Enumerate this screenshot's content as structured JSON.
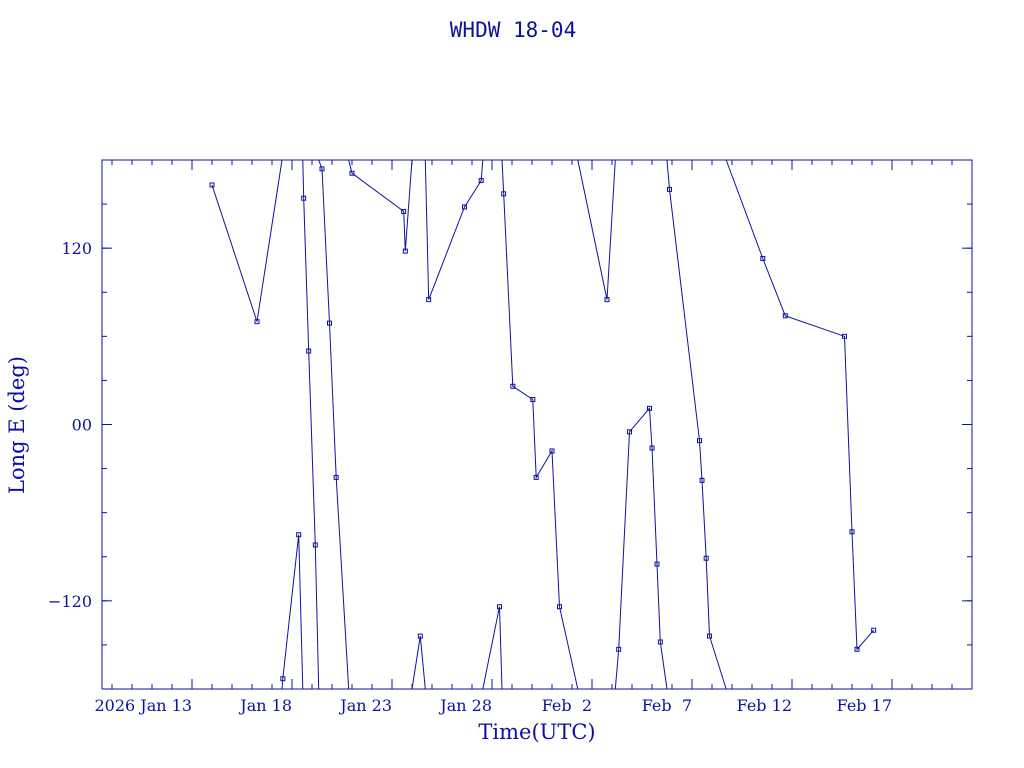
{
  "chart_data": {
    "type": "line",
    "title": "WHDW 18-04",
    "xlabel": "Time(UTC)",
    "ylabel": "Long E (deg)",
    "ylim": [
      -180,
      180
    ],
    "xlim": [
      "2026-01-08T12:00",
      "2026-02-21T00:00"
    ],
    "color": "#1010a0",
    "x_ticks": [
      {
        "date": "2026-01-13",
        "label": "2026 Jan 13"
      },
      {
        "date": "2026-01-18",
        "label": "Jan 18"
      },
      {
        "date": "2026-01-23",
        "label": "Jan 23"
      },
      {
        "date": "2026-01-28",
        "label": "Jan 28"
      },
      {
        "date": "2026-02-02",
        "label": "Feb  2"
      },
      {
        "date": "2026-02-07",
        "label": "Feb  7"
      },
      {
        "date": "2026-02-12",
        "label": "Feb 12"
      },
      {
        "date": "2026-02-17",
        "label": "Feb 17"
      }
    ],
    "y_ticks": [
      {
        "value": 120,
        "label": "120"
      },
      {
        "value": 0,
        "label": "00"
      },
      {
        "value": -120,
        "label": "−120"
      }
    ],
    "series": [
      {
        "points": [
          {
            "x": "2026-01-14T00:00",
            "y": 163
          },
          {
            "x": "2026-01-16T06:00",
            "y": 70
          },
          {
            "x": "2026-01-17T12:00",
            "y": 180,
            "m": 0
          },
          {
            "x": "2026-01-17T12:00",
            "y": -180,
            "m": 0
          },
          {
            "x": "2026-01-17T13:00",
            "y": -173
          },
          {
            "x": "2026-01-18T08:00",
            "y": -75
          },
          {
            "x": "2026-01-18T13:00",
            "y": -180,
            "m": 0
          },
          {
            "x": "2026-01-18T13:00",
            "y": 180,
            "m": 0
          },
          {
            "x": "2026-01-18T14:00",
            "y": 154
          },
          {
            "x": "2026-01-18T20:00",
            "y": 50
          },
          {
            "x": "2026-01-19T04:00",
            "y": -82
          },
          {
            "x": "2026-01-19T08:00",
            "y": -180,
            "m": 0
          },
          {
            "x": "2026-01-19T08:00",
            "y": 180,
            "m": 0
          },
          {
            "x": "2026-01-19T12:00",
            "y": 174
          },
          {
            "x": "2026-01-19T21:00",
            "y": 69
          },
          {
            "x": "2026-01-20T05:00",
            "y": -36
          },
          {
            "x": "2026-01-20T20:00",
            "y": -180,
            "m": 0
          },
          {
            "x": "2026-01-20T20:00",
            "y": 180,
            "m": 0
          },
          {
            "x": "2026-01-21T00:00",
            "y": 171
          },
          {
            "x": "2026-01-23T14:00",
            "y": 145
          },
          {
            "x": "2026-01-23T16:00",
            "y": 118
          },
          {
            "x": "2026-01-24T00:00",
            "y": 180,
            "m": 0
          },
          {
            "x": "2026-01-24T00:00",
            "y": -180,
            "m": 0
          },
          {
            "x": "2026-01-24T10:00",
            "y": -144
          },
          {
            "x": "2026-01-24T16:00",
            "y": -180,
            "m": 0
          },
          {
            "x": "2026-01-24T16:00",
            "y": 180,
            "m": 0
          },
          {
            "x": "2026-01-24T20:00",
            "y": 85
          },
          {
            "x": "2026-01-26T15:00",
            "y": 148
          },
          {
            "x": "2026-01-27T11:00",
            "y": 166
          },
          {
            "x": "2026-01-27T13:00",
            "y": 180,
            "m": 0
          },
          {
            "x": "2026-01-27T13:00",
            "y": -180,
            "m": 0
          },
          {
            "x": "2026-01-28T09:00",
            "y": -124
          },
          {
            "x": "2026-01-28T12:00",
            "y": -180,
            "m": 0
          },
          {
            "x": "2026-01-28T12:00",
            "y": 180,
            "m": 0
          },
          {
            "x": "2026-01-28T14:00",
            "y": 157
          },
          {
            "x": "2026-01-29T01:00",
            "y": 26
          },
          {
            "x": "2026-01-30T01:00",
            "y": 17
          },
          {
            "x": "2026-01-30T05:00",
            "y": -36
          },
          {
            "x": "2026-01-31T00:00",
            "y": -18
          },
          {
            "x": "2026-01-31T09:00",
            "y": -124
          },
          {
            "x": "2026-02-01T07:00",
            "y": -180,
            "m": 0
          },
          {
            "x": "2026-02-01T07:00",
            "y": 180,
            "m": 0
          },
          {
            "x": "2026-02-02T18:00",
            "y": 85
          },
          {
            "x": "2026-02-03T04:00",
            "y": 180,
            "m": 0
          },
          {
            "x": "2026-02-03T04:00",
            "y": -180,
            "m": 0
          },
          {
            "x": "2026-02-03T08:00",
            "y": -153
          },
          {
            "x": "2026-02-03T21:00",
            "y": -5
          },
          {
            "x": "2026-02-04T21:00",
            "y": 11
          },
          {
            "x": "2026-02-05T00:00",
            "y": -16
          },
          {
            "x": "2026-02-05T06:00",
            "y": -95
          },
          {
            "x": "2026-02-05T10:00",
            "y": -148
          },
          {
            "x": "2026-02-05T18:00",
            "y": -180,
            "m": 0
          },
          {
            "x": "2026-02-05T18:00",
            "y": 180,
            "m": 0
          },
          {
            "x": "2026-02-05T21:00",
            "y": 160
          },
          {
            "x": "2026-02-07T09:00",
            "y": -11
          },
          {
            "x": "2026-02-07T12:00",
            "y": -38
          },
          {
            "x": "2026-02-07T17:00",
            "y": -91
          },
          {
            "x": "2026-02-07T21:00",
            "y": -144
          },
          {
            "x": "2026-02-08T17:00",
            "y": -180,
            "m": 0
          },
          {
            "x": "2026-02-08T17:00",
            "y": 180,
            "m": 0
          },
          {
            "x": "2026-02-10T13:00",
            "y": 113
          },
          {
            "x": "2026-02-11T16:00",
            "y": 74
          },
          {
            "x": "2026-02-14T15:00",
            "y": 60
          },
          {
            "x": "2026-02-15T00:00",
            "y": -73
          },
          {
            "x": "2026-02-15T06:00",
            "y": -153
          },
          {
            "x": "2026-02-16T02:00",
            "y": -140
          }
        ]
      }
    ]
  }
}
